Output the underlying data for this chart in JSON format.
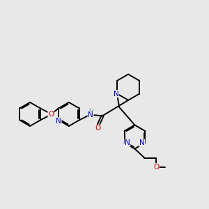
{
  "bg_color": "#e8e8e8",
  "bond_color": "#000000",
  "bond_width": 1.4,
  "N_color": "#0000cc",
  "O_color": "#cc0000",
  "H_color": "#2e8b8b",
  "font_size_atom": 7.5,
  "fig_width": 3.0,
  "fig_height": 3.0,
  "dpi": 100,
  "xlim": [
    0.0,
    9.5
  ],
  "ylim": [
    1.5,
    8.0
  ]
}
